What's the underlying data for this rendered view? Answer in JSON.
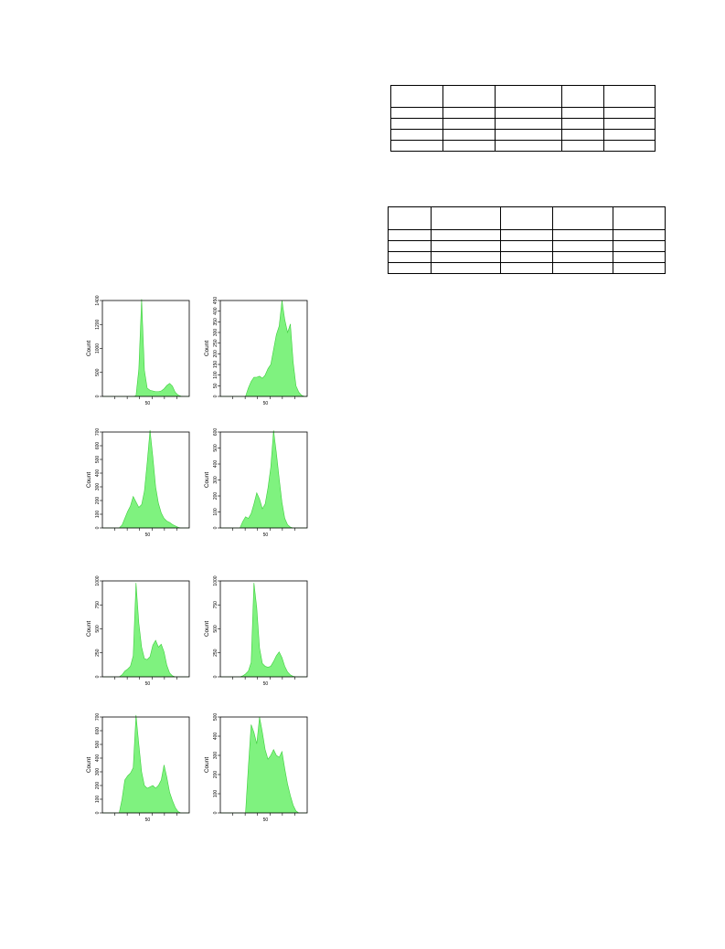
{
  "tables": [
    {
      "rows": 5,
      "cols": 5
    },
    {
      "rows": 5,
      "cols": 5
    }
  ],
  "colors": {
    "fill": "#7ff27f",
    "edge": "#3ccf3c",
    "axis": "#000000"
  },
  "chart_data": [
    {
      "type": "area",
      "ylabel": "Count",
      "xticklabel": "50",
      "ylim": [
        0,
        1400
      ],
      "yticks": [
        "0",
        "500",
        "1000",
        "1200",
        "1400"
      ],
      "x": [
        0,
        2,
        4,
        6,
        8,
        10,
        12,
        14,
        16,
        18,
        20,
        22,
        24,
        26,
        28,
        30,
        32,
        34,
        36,
        38,
        40,
        42,
        44,
        46,
        48,
        50,
        52,
        54,
        56,
        58,
        60,
        62
      ],
      "values": [
        0,
        0,
        0,
        0,
        0,
        0,
        0,
        0,
        0,
        0,
        0,
        0,
        10,
        400,
        1420,
        380,
        120,
        90,
        80,
        70,
        70,
        80,
        110,
        160,
        190,
        150,
        60,
        20,
        5,
        0,
        0,
        0
      ]
    },
    {
      "type": "area",
      "ylabel": "Count",
      "xticklabel": "50",
      "ylim": [
        0,
        450
      ],
      "yticks": [
        "0",
        "50",
        "100",
        "150",
        "200",
        "250",
        "300",
        "350",
        "400",
        "450"
      ],
      "x": [
        0,
        2,
        4,
        6,
        8,
        10,
        12,
        14,
        16,
        18,
        20,
        22,
        24,
        26,
        28,
        30,
        32,
        34,
        36,
        38,
        40,
        42,
        44,
        46,
        48,
        50,
        52,
        54,
        56,
        58,
        60,
        62
      ],
      "values": [
        0,
        0,
        0,
        0,
        0,
        0,
        0,
        0,
        0,
        0,
        40,
        70,
        90,
        90,
        95,
        85,
        100,
        130,
        150,
        220,
        290,
        330,
        450,
        360,
        300,
        340,
        160,
        50,
        20,
        5,
        0,
        0
      ]
    },
    {
      "type": "area",
      "ylabel": "Count",
      "xticklabel": "50",
      "ylim": [
        0,
        700
      ],
      "yticks": [
        "0",
        "100",
        "200",
        "300",
        "400",
        "500",
        "600",
        "700"
      ],
      "x": [
        0,
        2,
        4,
        6,
        8,
        10,
        12,
        14,
        16,
        18,
        20,
        22,
        24,
        26,
        28,
        30,
        32,
        34,
        36,
        38,
        40,
        42,
        44,
        46,
        48,
        50,
        52,
        54,
        56,
        58,
        60,
        62
      ],
      "values": [
        0,
        0,
        0,
        0,
        0,
        0,
        0,
        20,
        70,
        120,
        160,
        230,
        190,
        150,
        170,
        270,
        480,
        720,
        520,
        300,
        180,
        110,
        70,
        50,
        40,
        25,
        15,
        5,
        0,
        0,
        0,
        0
      ]
    },
    {
      "type": "area",
      "ylabel": "Count",
      "xticklabel": "50",
      "ylim": [
        0,
        600
      ],
      "yticks": [
        "0",
        "100",
        "200",
        "300",
        "400",
        "500",
        "600"
      ],
      "x": [
        0,
        2,
        4,
        6,
        8,
        10,
        12,
        14,
        16,
        18,
        20,
        22,
        24,
        26,
        28,
        30,
        32,
        34,
        36,
        38,
        40,
        42,
        44,
        46,
        48,
        50,
        52,
        54,
        56,
        58,
        60,
        62
      ],
      "values": [
        0,
        0,
        0,
        0,
        0,
        0,
        0,
        0,
        40,
        70,
        60,
        90,
        150,
        220,
        180,
        120,
        150,
        250,
        380,
        610,
        470,
        310,
        160,
        60,
        20,
        5,
        0,
        0,
        0,
        0,
        0,
        0
      ]
    },
    {
      "type": "area",
      "ylabel": "Count",
      "xticklabel": "50",
      "ylim": [
        0,
        1000
      ],
      "yticks": [
        "0",
        "250",
        "500",
        "750",
        "1000"
      ],
      "x": [
        0,
        2,
        4,
        6,
        8,
        10,
        12,
        14,
        16,
        18,
        20,
        22,
        24,
        26,
        28,
        30,
        32,
        34,
        36,
        38,
        40,
        42,
        44,
        46,
        48,
        50,
        52,
        54,
        56,
        58,
        60,
        62
      ],
      "values": [
        0,
        0,
        0,
        0,
        0,
        0,
        0,
        20,
        60,
        80,
        110,
        220,
        980,
        560,
        310,
        190,
        180,
        210,
        330,
        380,
        310,
        340,
        260,
        120,
        40,
        10,
        0,
        0,
        0,
        0,
        0,
        0
      ]
    },
    {
      "type": "area",
      "ylabel": "Count",
      "xticklabel": "50",
      "ylim": [
        0,
        1000
      ],
      "yticks": [
        "0",
        "250",
        "500",
        "750",
        "1000"
      ],
      "x": [
        0,
        2,
        4,
        6,
        8,
        10,
        12,
        14,
        16,
        18,
        20,
        22,
        24,
        26,
        28,
        30,
        32,
        34,
        36,
        38,
        40,
        42,
        44,
        46,
        48,
        50,
        52,
        54,
        56,
        58,
        60,
        62
      ],
      "values": [
        0,
        0,
        0,
        0,
        0,
        0,
        0,
        0,
        10,
        30,
        60,
        150,
        980,
        720,
        300,
        140,
        110,
        100,
        110,
        160,
        220,
        260,
        200,
        110,
        50,
        20,
        5,
        0,
        0,
        0,
        0,
        0
      ]
    },
    {
      "type": "area",
      "ylabel": "Count",
      "xticklabel": "50",
      "ylim": [
        0,
        700
      ],
      "yticks": [
        "0",
        "100",
        "200",
        "300",
        "400",
        "500",
        "600",
        "700"
      ],
      "x": [
        0,
        2,
        4,
        6,
        8,
        10,
        12,
        14,
        16,
        18,
        20,
        22,
        24,
        26,
        28,
        30,
        32,
        34,
        36,
        38,
        40,
        42,
        44,
        46,
        48,
        50,
        52,
        54,
        56,
        58,
        60,
        62
      ],
      "values": [
        0,
        0,
        0,
        0,
        0,
        0,
        0,
        100,
        240,
        270,
        290,
        330,
        720,
        500,
        300,
        200,
        180,
        190,
        200,
        180,
        200,
        240,
        350,
        260,
        150,
        90,
        40,
        10,
        0,
        0,
        0,
        0
      ]
    },
    {
      "type": "area",
      "ylabel": "Count",
      "xticklabel": "50",
      "ylim": [
        0,
        500
      ],
      "yticks": [
        "0",
        "100",
        "200",
        "300",
        "400",
        "500"
      ],
      "x": [
        0,
        2,
        4,
        6,
        8,
        10,
        12,
        14,
        16,
        18,
        20,
        22,
        24,
        26,
        28,
        30,
        32,
        34,
        36,
        38,
        40,
        42,
        44,
        46,
        48,
        50,
        52,
        54,
        56,
        58,
        60,
        62
      ],
      "values": [
        0,
        0,
        0,
        0,
        0,
        0,
        0,
        0,
        0,
        0,
        240,
        460,
        420,
        360,
        500,
        420,
        330,
        280,
        300,
        330,
        300,
        290,
        320,
        230,
        150,
        90,
        40,
        10,
        0,
        0,
        0,
        0
      ]
    }
  ]
}
